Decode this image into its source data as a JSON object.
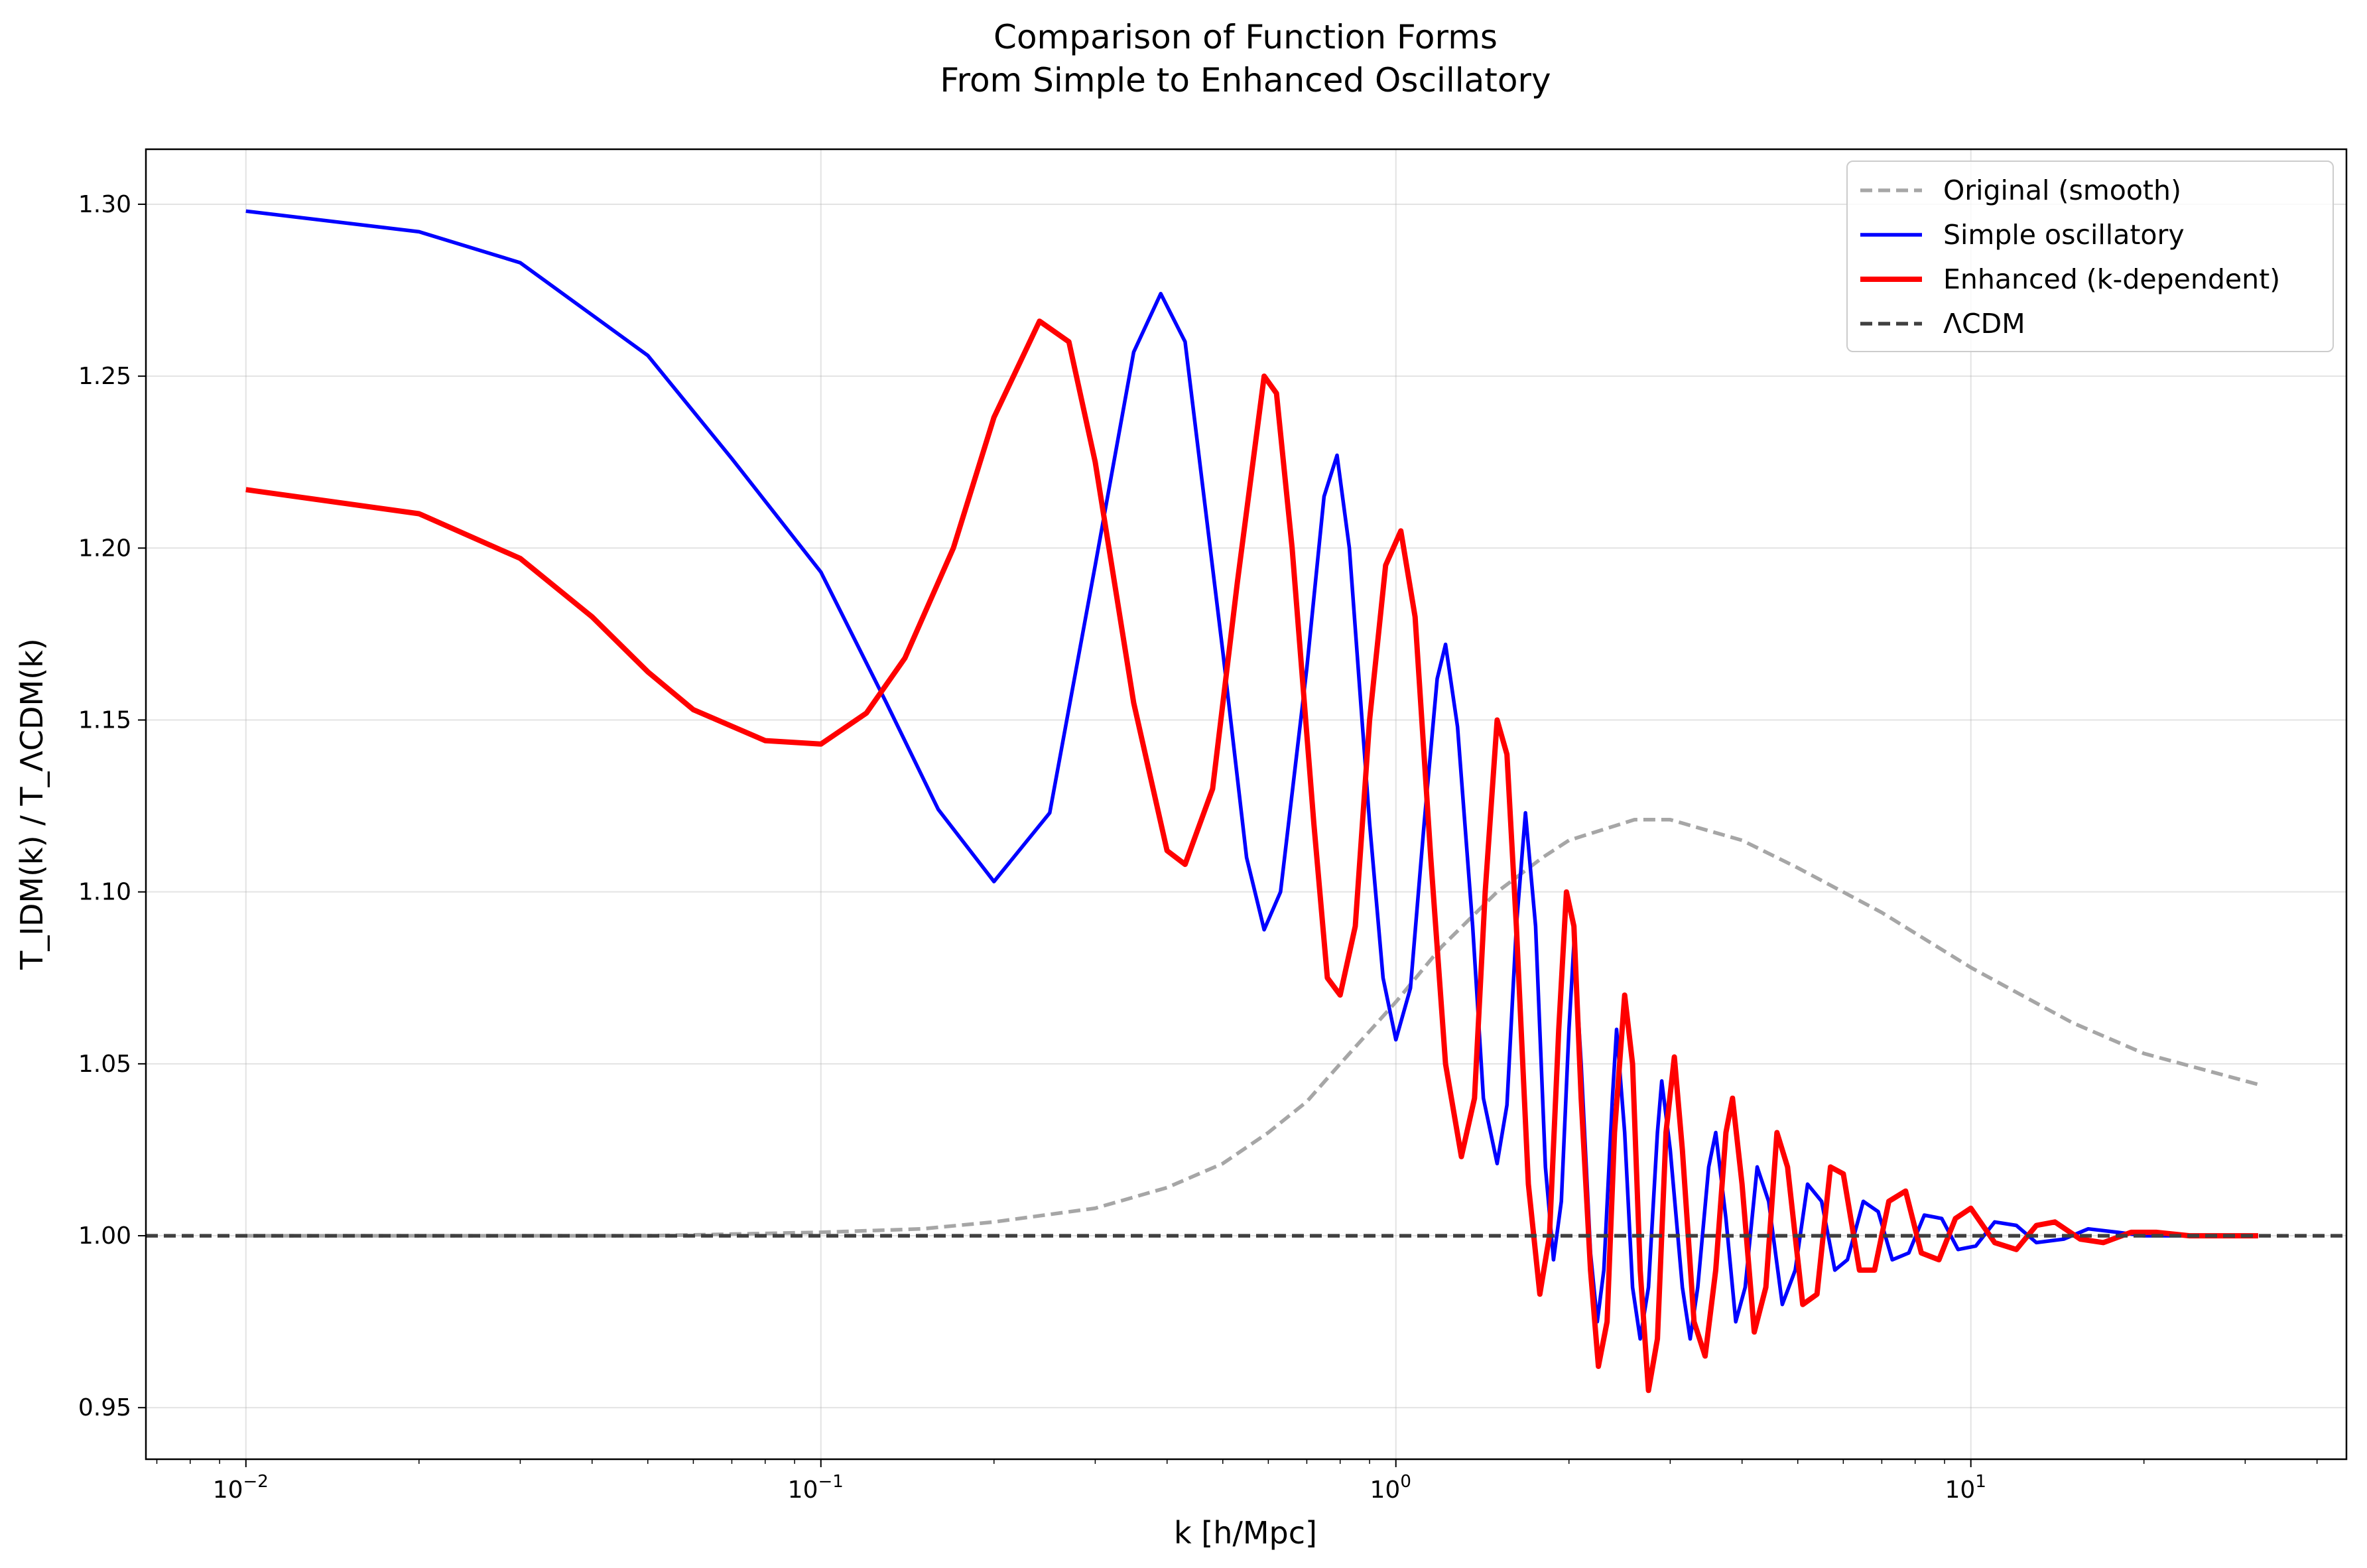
{
  "chart_data": {
    "type": "line",
    "title_line1": "Comparison of Function Forms",
    "title_line2": "From Simple to Enhanced Oscillatory",
    "xlabel": "k [h/Mpc]",
    "ylabel": "T_IDM(k) / T_ΛCDM(k)",
    "x_scale": "log",
    "xlim": [
      0.0067,
      45
    ],
    "ylim": [
      0.935,
      1.316
    ],
    "grid": true,
    "legend_position": "top-right",
    "x_ticks": [
      {
        "value": 0.01,
        "base": "10",
        "exp": "−2"
      },
      {
        "value": 0.1,
        "base": "10",
        "exp": "−1"
      },
      {
        "value": 1,
        "base": "10",
        "exp": "0"
      },
      {
        "value": 10,
        "base": "10",
        "exp": "1"
      }
    ],
    "y_ticks": [
      0.95,
      1.0,
      1.05,
      1.1,
      1.15,
      1.2,
      1.25,
      1.3
    ],
    "y_tick_labels": [
      "0.95",
      "1.00",
      "1.05",
      "1.10",
      "1.15",
      "1.20",
      "1.25",
      "1.30"
    ],
    "k_range": [
      0.01,
      31.6
    ],
    "series": [
      {
        "name": "Original (smooth)",
        "color": "#a6a6a6",
        "style": "dashed",
        "points": [
          [
            0.01,
            1.0
          ],
          [
            0.05,
            1.0
          ],
          [
            0.1,
            1.001
          ],
          [
            0.15,
            1.002
          ],
          [
            0.2,
            1.004
          ],
          [
            0.3,
            1.008
          ],
          [
            0.4,
            1.014
          ],
          [
            0.5,
            1.021
          ],
          [
            0.6,
            1.03
          ],
          [
            0.7,
            1.039
          ],
          [
            0.8,
            1.05
          ],
          [
            1.0,
            1.068
          ],
          [
            1.2,
            1.084
          ],
          [
            1.5,
            1.1
          ],
          [
            1.8,
            1.11
          ],
          [
            2.0,
            1.115
          ],
          [
            2.6,
            1.121
          ],
          [
            3.0,
            1.121
          ],
          [
            4.0,
            1.115
          ],
          [
            5.0,
            1.107
          ],
          [
            7.0,
            1.094
          ],
          [
            10.0,
            1.078
          ],
          [
            15.0,
            1.062
          ],
          [
            20.0,
            1.053
          ],
          [
            31.6,
            1.044
          ]
        ]
      },
      {
        "name": "Simple oscillatory",
        "color": "#0000ff",
        "style": "solid",
        "points": [
          [
            0.01,
            1.298
          ],
          [
            0.02,
            1.292
          ],
          [
            0.03,
            1.283
          ],
          [
            0.05,
            1.256
          ],
          [
            0.07,
            1.226
          ],
          [
            0.1,
            1.193
          ],
          [
            0.13,
            1.155
          ],
          [
            0.16,
            1.124
          ],
          [
            0.2,
            1.103
          ],
          [
            0.25,
            1.123
          ],
          [
            0.3,
            1.195
          ],
          [
            0.35,
            1.257
          ],
          [
            0.39,
            1.274
          ],
          [
            0.43,
            1.26
          ],
          [
            0.5,
            1.17
          ],
          [
            0.55,
            1.11
          ],
          [
            0.59,
            1.089
          ],
          [
            0.63,
            1.1
          ],
          [
            0.7,
            1.165
          ],
          [
            0.75,
            1.215
          ],
          [
            0.79,
            1.227
          ],
          [
            0.83,
            1.2
          ],
          [
            0.9,
            1.12
          ],
          [
            0.95,
            1.075
          ],
          [
            1.0,
            1.057
          ],
          [
            1.06,
            1.072
          ],
          [
            1.12,
            1.12
          ],
          [
            1.18,
            1.162
          ],
          [
            1.22,
            1.172
          ],
          [
            1.28,
            1.148
          ],
          [
            1.36,
            1.09
          ],
          [
            1.42,
            1.04
          ],
          [
            1.5,
            1.021
          ],
          [
            1.56,
            1.038
          ],
          [
            1.62,
            1.09
          ],
          [
            1.68,
            1.123
          ],
          [
            1.75,
            1.09
          ],
          [
            1.82,
            1.02
          ],
          [
            1.88,
            0.993
          ],
          [
            1.94,
            1.01
          ],
          [
            2.0,
            1.06
          ],
          [
            2.04,
            1.085
          ],
          [
            2.1,
            1.05
          ],
          [
            2.18,
            0.995
          ],
          [
            2.24,
            0.975
          ],
          [
            2.3,
            0.99
          ],
          [
            2.38,
            1.04
          ],
          [
            2.42,
            1.06
          ],
          [
            2.5,
            1.03
          ],
          [
            2.58,
            0.985
          ],
          [
            2.66,
            0.97
          ],
          [
            2.75,
            0.985
          ],
          [
            2.85,
            1.03
          ],
          [
            2.9,
            1.045
          ],
          [
            3.0,
            1.025
          ],
          [
            3.15,
            0.985
          ],
          [
            3.25,
            0.97
          ],
          [
            3.35,
            0.985
          ],
          [
            3.5,
            1.02
          ],
          [
            3.6,
            1.03
          ],
          [
            3.75,
            1.005
          ],
          [
            3.9,
            0.975
          ],
          [
            4.05,
            0.985
          ],
          [
            4.25,
            1.02
          ],
          [
            4.45,
            1.01
          ],
          [
            4.7,
            0.98
          ],
          [
            4.95,
            0.99
          ],
          [
            5.2,
            1.015
          ],
          [
            5.5,
            1.01
          ],
          [
            5.8,
            0.99
          ],
          [
            6.1,
            0.993
          ],
          [
            6.5,
            1.01
          ],
          [
            6.9,
            1.007
          ],
          [
            7.3,
            0.993
          ],
          [
            7.8,
            0.995
          ],
          [
            8.3,
            1.006
          ],
          [
            8.9,
            1.005
          ],
          [
            9.5,
            0.996
          ],
          [
            10.2,
            0.997
          ],
          [
            11,
            1.004
          ],
          [
            12,
            1.003
          ],
          [
            13,
            0.998
          ],
          [
            14.5,
            0.999
          ],
          [
            16,
            1.002
          ],
          [
            18,
            1.001
          ],
          [
            20,
            1.0
          ],
          [
            31.6,
            1.0
          ]
        ]
      },
      {
        "name": "Enhanced (k-dependent)",
        "color": "#ff0000",
        "style": "solid",
        "points": [
          [
            0.01,
            1.217
          ],
          [
            0.02,
            1.21
          ],
          [
            0.03,
            1.197
          ],
          [
            0.04,
            1.18
          ],
          [
            0.05,
            1.164
          ],
          [
            0.06,
            1.153
          ],
          [
            0.08,
            1.144
          ],
          [
            0.1,
            1.143
          ],
          [
            0.12,
            1.152
          ],
          [
            0.14,
            1.168
          ],
          [
            0.17,
            1.2
          ],
          [
            0.2,
            1.238
          ],
          [
            0.24,
            1.266
          ],
          [
            0.27,
            1.26
          ],
          [
            0.3,
            1.225
          ],
          [
            0.35,
            1.155
          ],
          [
            0.4,
            1.112
          ],
          [
            0.43,
            1.108
          ],
          [
            0.48,
            1.13
          ],
          [
            0.53,
            1.19
          ],
          [
            0.59,
            1.25
          ],
          [
            0.62,
            1.245
          ],
          [
            0.66,
            1.2
          ],
          [
            0.72,
            1.12
          ],
          [
            0.76,
            1.075
          ],
          [
            0.8,
            1.07
          ],
          [
            0.85,
            1.09
          ],
          [
            0.9,
            1.15
          ],
          [
            0.96,
            1.195
          ],
          [
            1.02,
            1.205
          ],
          [
            1.08,
            1.18
          ],
          [
            1.15,
            1.11
          ],
          [
            1.22,
            1.05
          ],
          [
            1.3,
            1.023
          ],
          [
            1.37,
            1.04
          ],
          [
            1.43,
            1.1
          ],
          [
            1.5,
            1.15
          ],
          [
            1.56,
            1.14
          ],
          [
            1.62,
            1.09
          ],
          [
            1.7,
            1.015
          ],
          [
            1.78,
            0.983
          ],
          [
            1.85,
            1.0
          ],
          [
            1.92,
            1.06
          ],
          [
            1.98,
            1.1
          ],
          [
            2.04,
            1.09
          ],
          [
            2.1,
            1.04
          ],
          [
            2.18,
            0.99
          ],
          [
            2.25,
            0.962
          ],
          [
            2.33,
            0.975
          ],
          [
            2.4,
            1.03
          ],
          [
            2.5,
            1.07
          ],
          [
            2.58,
            1.05
          ],
          [
            2.66,
            0.99
          ],
          [
            2.75,
            0.955
          ],
          [
            2.85,
            0.97
          ],
          [
            2.95,
            1.03
          ],
          [
            3.05,
            1.052
          ],
          [
            3.15,
            1.025
          ],
          [
            3.3,
            0.975
          ],
          [
            3.45,
            0.965
          ],
          [
            3.6,
            0.99
          ],
          [
            3.75,
            1.03
          ],
          [
            3.85,
            1.04
          ],
          [
            4.0,
            1.015
          ],
          [
            4.2,
            0.972
          ],
          [
            4.4,
            0.985
          ],
          [
            4.6,
            1.03
          ],
          [
            4.8,
            1.02
          ],
          [
            5.1,
            0.98
          ],
          [
            5.4,
            0.983
          ],
          [
            5.7,
            1.02
          ],
          [
            6.0,
            1.018
          ],
          [
            6.4,
            0.99
          ],
          [
            6.8,
            0.99
          ],
          [
            7.2,
            1.01
          ],
          [
            7.7,
            1.013
          ],
          [
            8.2,
            0.995
          ],
          [
            8.8,
            0.993
          ],
          [
            9.4,
            1.005
          ],
          [
            10,
            1.008
          ],
          [
            11,
            0.998
          ],
          [
            12,
            0.996
          ],
          [
            13,
            1.003
          ],
          [
            14,
            1.004
          ],
          [
            15.5,
            0.999
          ],
          [
            17,
            0.998
          ],
          [
            19,
            1.001
          ],
          [
            21,
            1.001
          ],
          [
            24,
            1.0
          ],
          [
            31.6,
            1.0
          ]
        ]
      },
      {
        "name": "ΛCDM",
        "color": "#404040",
        "style": "dashed",
        "points": [
          [
            0.0067,
            1.0
          ],
          [
            45,
            1.0
          ]
        ]
      }
    ]
  }
}
